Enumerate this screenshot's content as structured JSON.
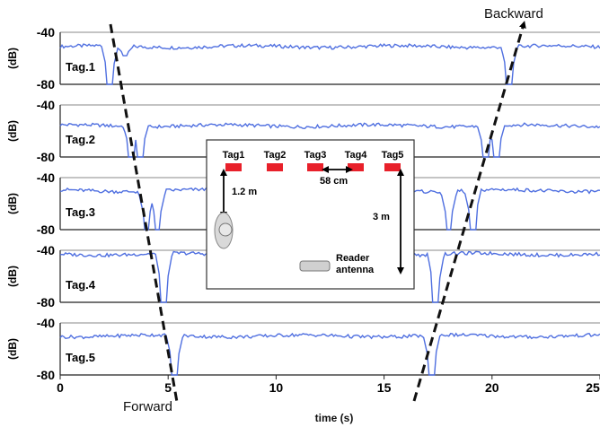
{
  "colors": {
    "signal": "#4f6fe0",
    "frame": "#888888",
    "tag_marker": "#e8202a",
    "antenna": "#d0d0d0",
    "dash": "#111111"
  },
  "chart_data": {
    "type": "line",
    "xlabel": "time (s)",
    "ylabel": "(dB)",
    "xlim": [
      0,
      25
    ],
    "ylim": [
      -80,
      -40
    ],
    "x_ticks": [
      "0",
      "5",
      "10",
      "15",
      "20",
      "25"
    ],
    "y_ticks": [
      "-40",
      "-80"
    ],
    "grid": false,
    "annotations": {
      "forward": "Forward",
      "backward": "Backward"
    },
    "series": [
      {
        "name": "Tag.1",
        "baseline": -51,
        "dips": [
          {
            "t": 2.3,
            "depth": -80
          },
          {
            "t": 3.0,
            "depth": -58
          },
          {
            "t": 20.8,
            "depth": -80
          }
        ]
      },
      {
        "name": "Tag.2",
        "baseline": -56,
        "dips": [
          {
            "t": 3.3,
            "depth": -80
          },
          {
            "t": 3.7,
            "depth": -80
          },
          {
            "t": 19.7,
            "depth": -80
          },
          {
            "t": 20.2,
            "depth": -80
          }
        ]
      },
      {
        "name": "Tag.3",
        "baseline": -50,
        "dips": [
          {
            "t": 4.0,
            "depth": -80
          },
          {
            "t": 4.5,
            "depth": -80
          },
          {
            "t": 18.0,
            "depth": -80
          },
          {
            "t": 19.1,
            "depth": -80
          }
        ]
      },
      {
        "name": "Tag.4",
        "baseline": -43,
        "dips": [
          {
            "t": 4.8,
            "depth": -80
          },
          {
            "t": 17.4,
            "depth": -80
          }
        ]
      },
      {
        "name": "Tag.5",
        "baseline": -50,
        "dips": [
          {
            "t": 5.3,
            "depth": -80
          },
          {
            "t": 17.2,
            "depth": -80
          }
        ]
      }
    ]
  },
  "inset": {
    "tags": [
      "Tag1",
      "Tag2",
      "Tag3",
      "Tag4",
      "Tag5"
    ],
    "spacing_label": "58 cm",
    "distance_near": "1.2 m",
    "distance_far": "3 m",
    "antenna_label_1": "Reader",
    "antenna_label_2": "antenna"
  }
}
